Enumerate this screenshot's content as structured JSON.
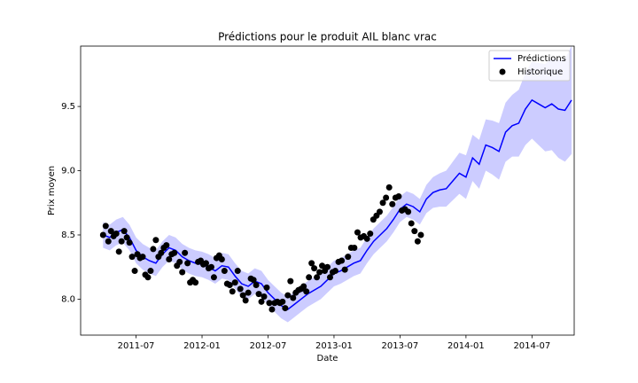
{
  "chart_data": {
    "type": "forecast",
    "title": "Prédictions pour le produit AIL blanc vrac",
    "x_label": "Date",
    "y_label": "Prix moyen",
    "xlim": [
      2011.08,
      2014.82
    ],
    "ylim": [
      7.72,
      9.97
    ],
    "xticks": [
      {
        "value": 2011.5,
        "label": "2011-07"
      },
      {
        "value": 2012.0,
        "label": "2012-01"
      },
      {
        "value": 2012.5,
        "label": "2012-07"
      },
      {
        "value": 2013.0,
        "label": "2013-01"
      },
      {
        "value": 2013.5,
        "label": "2013-07"
      },
      {
        "value": 2014.0,
        "label": "2014-01"
      },
      {
        "value": 2014.5,
        "label": "2014-07"
      }
    ],
    "yticks": [
      {
        "value": 8,
        "label": "8.0"
      },
      8.5,
      {
        "value": 9,
        "label": "9.0"
      },
      9.5
    ],
    "legend": "upper right",
    "series": [
      {
        "name": "Prédictions",
        "color": "#0000ff",
        "x": [
          2011.25,
          2011.3,
          2011.35,
          2011.4,
          2011.45,
          2011.5,
          2011.55,
          2011.6,
          2011.65,
          2011.7,
          2011.75,
          2011.8,
          2011.85,
          2011.9,
          2011.95,
          2012.0,
          2012.05,
          2012.1,
          2012.15,
          2012.2,
          2012.25,
          2012.3,
          2012.35,
          2012.4,
          2012.45,
          2012.5,
          2012.55,
          2012.6,
          2012.65,
          2012.7,
          2012.75,
          2012.8,
          2012.85,
          2012.9,
          2012.95,
          2013.0,
          2013.05,
          2013.1,
          2013.15,
          2013.2,
          2013.25,
          2013.3,
          2013.35,
          2013.4,
          2013.45,
          2013.5,
          2013.55,
          2013.6,
          2013.65,
          2013.7,
          2013.75,
          2013.8,
          2013.85,
          2013.9,
          2013.95,
          2014.0,
          2014.05,
          2014.1,
          2014.15,
          2014.2,
          2014.25,
          2014.3,
          2014.35,
          2014.4,
          2014.45,
          2014.5,
          2014.55,
          2014.6,
          2014.65,
          2014.7,
          2014.75,
          2014.8
        ],
        "values": [
          8.5,
          8.48,
          8.52,
          8.54,
          8.48,
          8.38,
          8.33,
          8.3,
          8.28,
          8.35,
          8.4,
          8.38,
          8.33,
          8.3,
          8.28,
          8.27,
          8.25,
          8.22,
          8.26,
          8.25,
          8.18,
          8.12,
          8.1,
          8.14,
          8.12,
          8.05,
          8.0,
          7.95,
          7.92,
          7.96,
          8.0,
          8.04,
          8.07,
          8.1,
          8.15,
          8.2,
          8.22,
          8.25,
          8.28,
          8.3,
          8.38,
          8.45,
          8.5,
          8.55,
          8.62,
          8.7,
          8.74,
          8.72,
          8.68,
          8.78,
          8.83,
          8.85,
          8.86,
          8.92,
          8.98,
          8.95,
          9.1,
          9.05,
          9.2,
          9.18,
          9.15,
          9.3,
          9.35,
          9.37,
          9.48,
          9.55,
          9.52,
          9.49,
          9.52,
          9.48,
          9.47,
          9.55
        ],
        "lower": [
          8.4,
          8.38,
          8.42,
          8.44,
          8.38,
          8.28,
          8.23,
          8.2,
          8.18,
          8.25,
          8.3,
          8.28,
          8.23,
          8.2,
          8.18,
          8.17,
          8.15,
          8.12,
          8.16,
          8.15,
          8.08,
          8.02,
          8.0,
          8.04,
          8.02,
          7.95,
          7.9,
          7.85,
          7.82,
          7.86,
          7.9,
          7.94,
          7.97,
          8.0,
          8.05,
          8.1,
          8.12,
          8.15,
          8.18,
          8.2,
          8.28,
          8.35,
          8.4,
          8.45,
          8.52,
          8.6,
          8.64,
          8.62,
          8.58,
          8.67,
          8.71,
          8.72,
          8.72,
          8.77,
          8.82,
          8.78,
          8.92,
          8.86,
          9.0,
          8.97,
          8.93,
          9.07,
          9.11,
          9.11,
          9.2,
          9.25,
          9.2,
          9.15,
          9.16,
          9.1,
          9.07,
          9.13
        ],
        "upper": [
          8.6,
          8.58,
          8.62,
          8.64,
          8.58,
          8.48,
          8.43,
          8.4,
          8.38,
          8.45,
          8.5,
          8.48,
          8.43,
          8.4,
          8.38,
          8.37,
          8.35,
          8.32,
          8.36,
          8.35,
          8.28,
          8.22,
          8.2,
          8.24,
          8.22,
          8.15,
          8.1,
          8.05,
          8.02,
          8.06,
          8.1,
          8.14,
          8.17,
          8.2,
          8.25,
          8.3,
          8.32,
          8.35,
          8.38,
          8.4,
          8.48,
          8.55,
          8.6,
          8.65,
          8.72,
          8.8,
          8.84,
          8.82,
          8.78,
          8.89,
          8.95,
          8.98,
          9.0,
          9.07,
          9.14,
          9.12,
          9.28,
          9.24,
          9.4,
          9.39,
          9.37,
          9.53,
          9.59,
          9.63,
          9.76,
          9.85,
          9.84,
          9.83,
          9.88,
          9.86,
          9.87,
          9.97
        ]
      },
      {
        "name": "Historique",
        "color": "#000000",
        "x": [
          2011.25,
          2011.27,
          2011.29,
          2011.31,
          2011.33,
          2011.35,
          2011.37,
          2011.39,
          2011.41,
          2011.43,
          2011.45,
          2011.47,
          2011.49,
          2011.51,
          2011.53,
          2011.55,
          2011.57,
          2011.59,
          2011.61,
          2011.63,
          2011.65,
          2011.67,
          2011.69,
          2011.71,
          2011.73,
          2011.75,
          2011.77,
          2011.79,
          2011.81,
          2011.83,
          2011.85,
          2011.87,
          2011.89,
          2011.91,
          2011.93,
          2011.95,
          2011.97,
          2011.99,
          2012.01,
          2012.03,
          2012.05,
          2012.07,
          2012.09,
          2012.11,
          2012.13,
          2012.15,
          2012.17,
          2012.19,
          2012.21,
          2012.23,
          2012.25,
          2012.27,
          2012.29,
          2012.31,
          2012.33,
          2012.35,
          2012.37,
          2012.39,
          2012.41,
          2012.43,
          2012.45,
          2012.47,
          2012.49,
          2012.51,
          2012.53,
          2012.55,
          2012.57,
          2012.59,
          2012.61,
          2012.63,
          2012.65,
          2012.67,
          2012.69,
          2012.71,
          2012.73,
          2012.75,
          2012.77,
          2012.79,
          2012.81,
          2012.83,
          2012.85,
          2012.87,
          2012.89,
          2012.91,
          2012.93,
          2012.95,
          2012.97,
          2012.99,
          2013.01,
          2013.034,
          2013.058,
          2013.082,
          2013.106,
          2013.13,
          2013.154,
          2013.178,
          2013.202,
          2013.226,
          2013.25,
          2013.274,
          2013.298,
          2013.322,
          2013.346,
          2013.37,
          2013.394,
          2013.418,
          2013.442,
          2013.466,
          2013.49,
          2013.514,
          2013.538,
          2013.562,
          2013.586,
          2013.61,
          2013.634,
          2013.658
        ],
        "values": [
          8.5,
          8.57,
          8.45,
          8.53,
          8.49,
          8.51,
          8.37,
          8.45,
          8.53,
          8.48,
          8.44,
          8.33,
          8.22,
          8.35,
          8.32,
          8.33,
          8.19,
          8.17,
          8.22,
          8.39,
          8.46,
          8.33,
          8.36,
          8.4,
          8.42,
          8.31,
          8.35,
          8.36,
          8.26,
          8.29,
          8.21,
          8.36,
          8.28,
          8.13,
          8.15,
          8.13,
          8.29,
          8.3,
          8.27,
          8.28,
          8.24,
          8.25,
          8.17,
          8.32,
          8.34,
          8.31,
          8.22,
          8.12,
          8.11,
          8.06,
          8.13,
          8.22,
          8.08,
          8.03,
          7.99,
          8.05,
          8.16,
          8.15,
          8.11,
          8.04,
          7.98,
          8.02,
          8.09,
          7.97,
          7.92,
          7.97,
          7.98,
          7.97,
          7.98,
          7.93,
          8.03,
          8.14,
          8.01,
          8.05,
          8.07,
          8.08,
          8.1,
          8.06,
          8.17,
          8.28,
          8.24,
          8.17,
          8.21,
          8.26,
          8.22,
          8.25,
          8.17,
          8.21,
          8.22,
          8.29,
          8.3,
          8.23,
          8.33,
          8.4,
          8.4,
          8.52,
          8.48,
          8.49,
          8.47,
          8.51,
          8.62,
          8.65,
          8.68,
          8.75,
          8.79,
          8.87,
          8.74,
          8.79,
          8.8,
          8.69,
          8.7,
          8.68,
          8.59,
          8.53,
          8.45,
          8.5
        ]
      }
    ]
  }
}
